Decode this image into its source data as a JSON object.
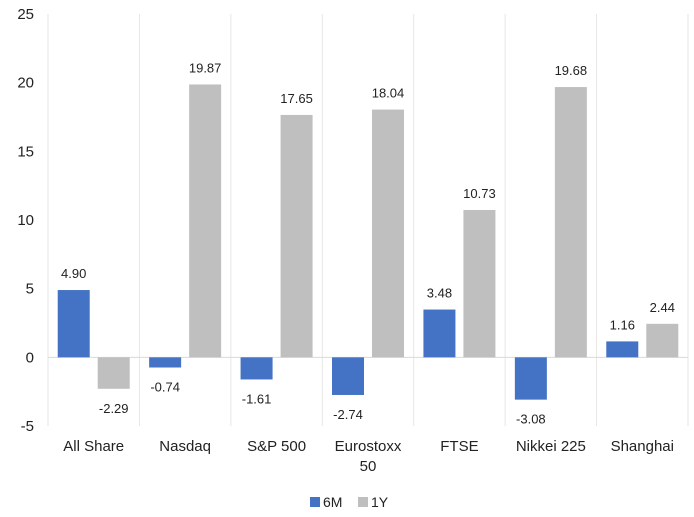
{
  "chart_data": {
    "type": "bar",
    "categories": [
      "All Share",
      "Nasdaq",
      "S&P 500",
      "Eurostoxx 50",
      "FTSE",
      "Nikkei 225",
      "Shanghai"
    ],
    "category_lines": [
      [
        "All Share"
      ],
      [
        "Nasdaq"
      ],
      [
        "S&P 500"
      ],
      [
        "Eurostoxx",
        "50"
      ],
      [
        "FTSE"
      ],
      [
        "Nikkei 225"
      ],
      [
        "Shanghai"
      ]
    ],
    "series": [
      {
        "name": "6M",
        "color": "#4472c4",
        "values": [
          4.9,
          -0.74,
          -1.61,
          -2.74,
          3.48,
          -3.08,
          1.16
        ],
        "labels": [
          "4.90",
          "-0.74",
          "-1.61",
          "-2.74",
          "3.48",
          "-3.08",
          "1.16"
        ]
      },
      {
        "name": "1Y",
        "color": "#bfbfbf",
        "values": [
          -2.29,
          19.87,
          17.65,
          18.04,
          10.73,
          19.68,
          2.44
        ],
        "labels": [
          "-2.29",
          "19.87",
          "17.65",
          "18.04",
          "10.73",
          "19.68",
          "2.44"
        ]
      }
    ],
    "y_ticks": [
      "25",
      "20",
      "15",
      "10",
      "5",
      "0",
      "-5"
    ],
    "ylim": [
      -5,
      25
    ],
    "grid": "vertical-separators",
    "legend_position": "bottom-center"
  }
}
